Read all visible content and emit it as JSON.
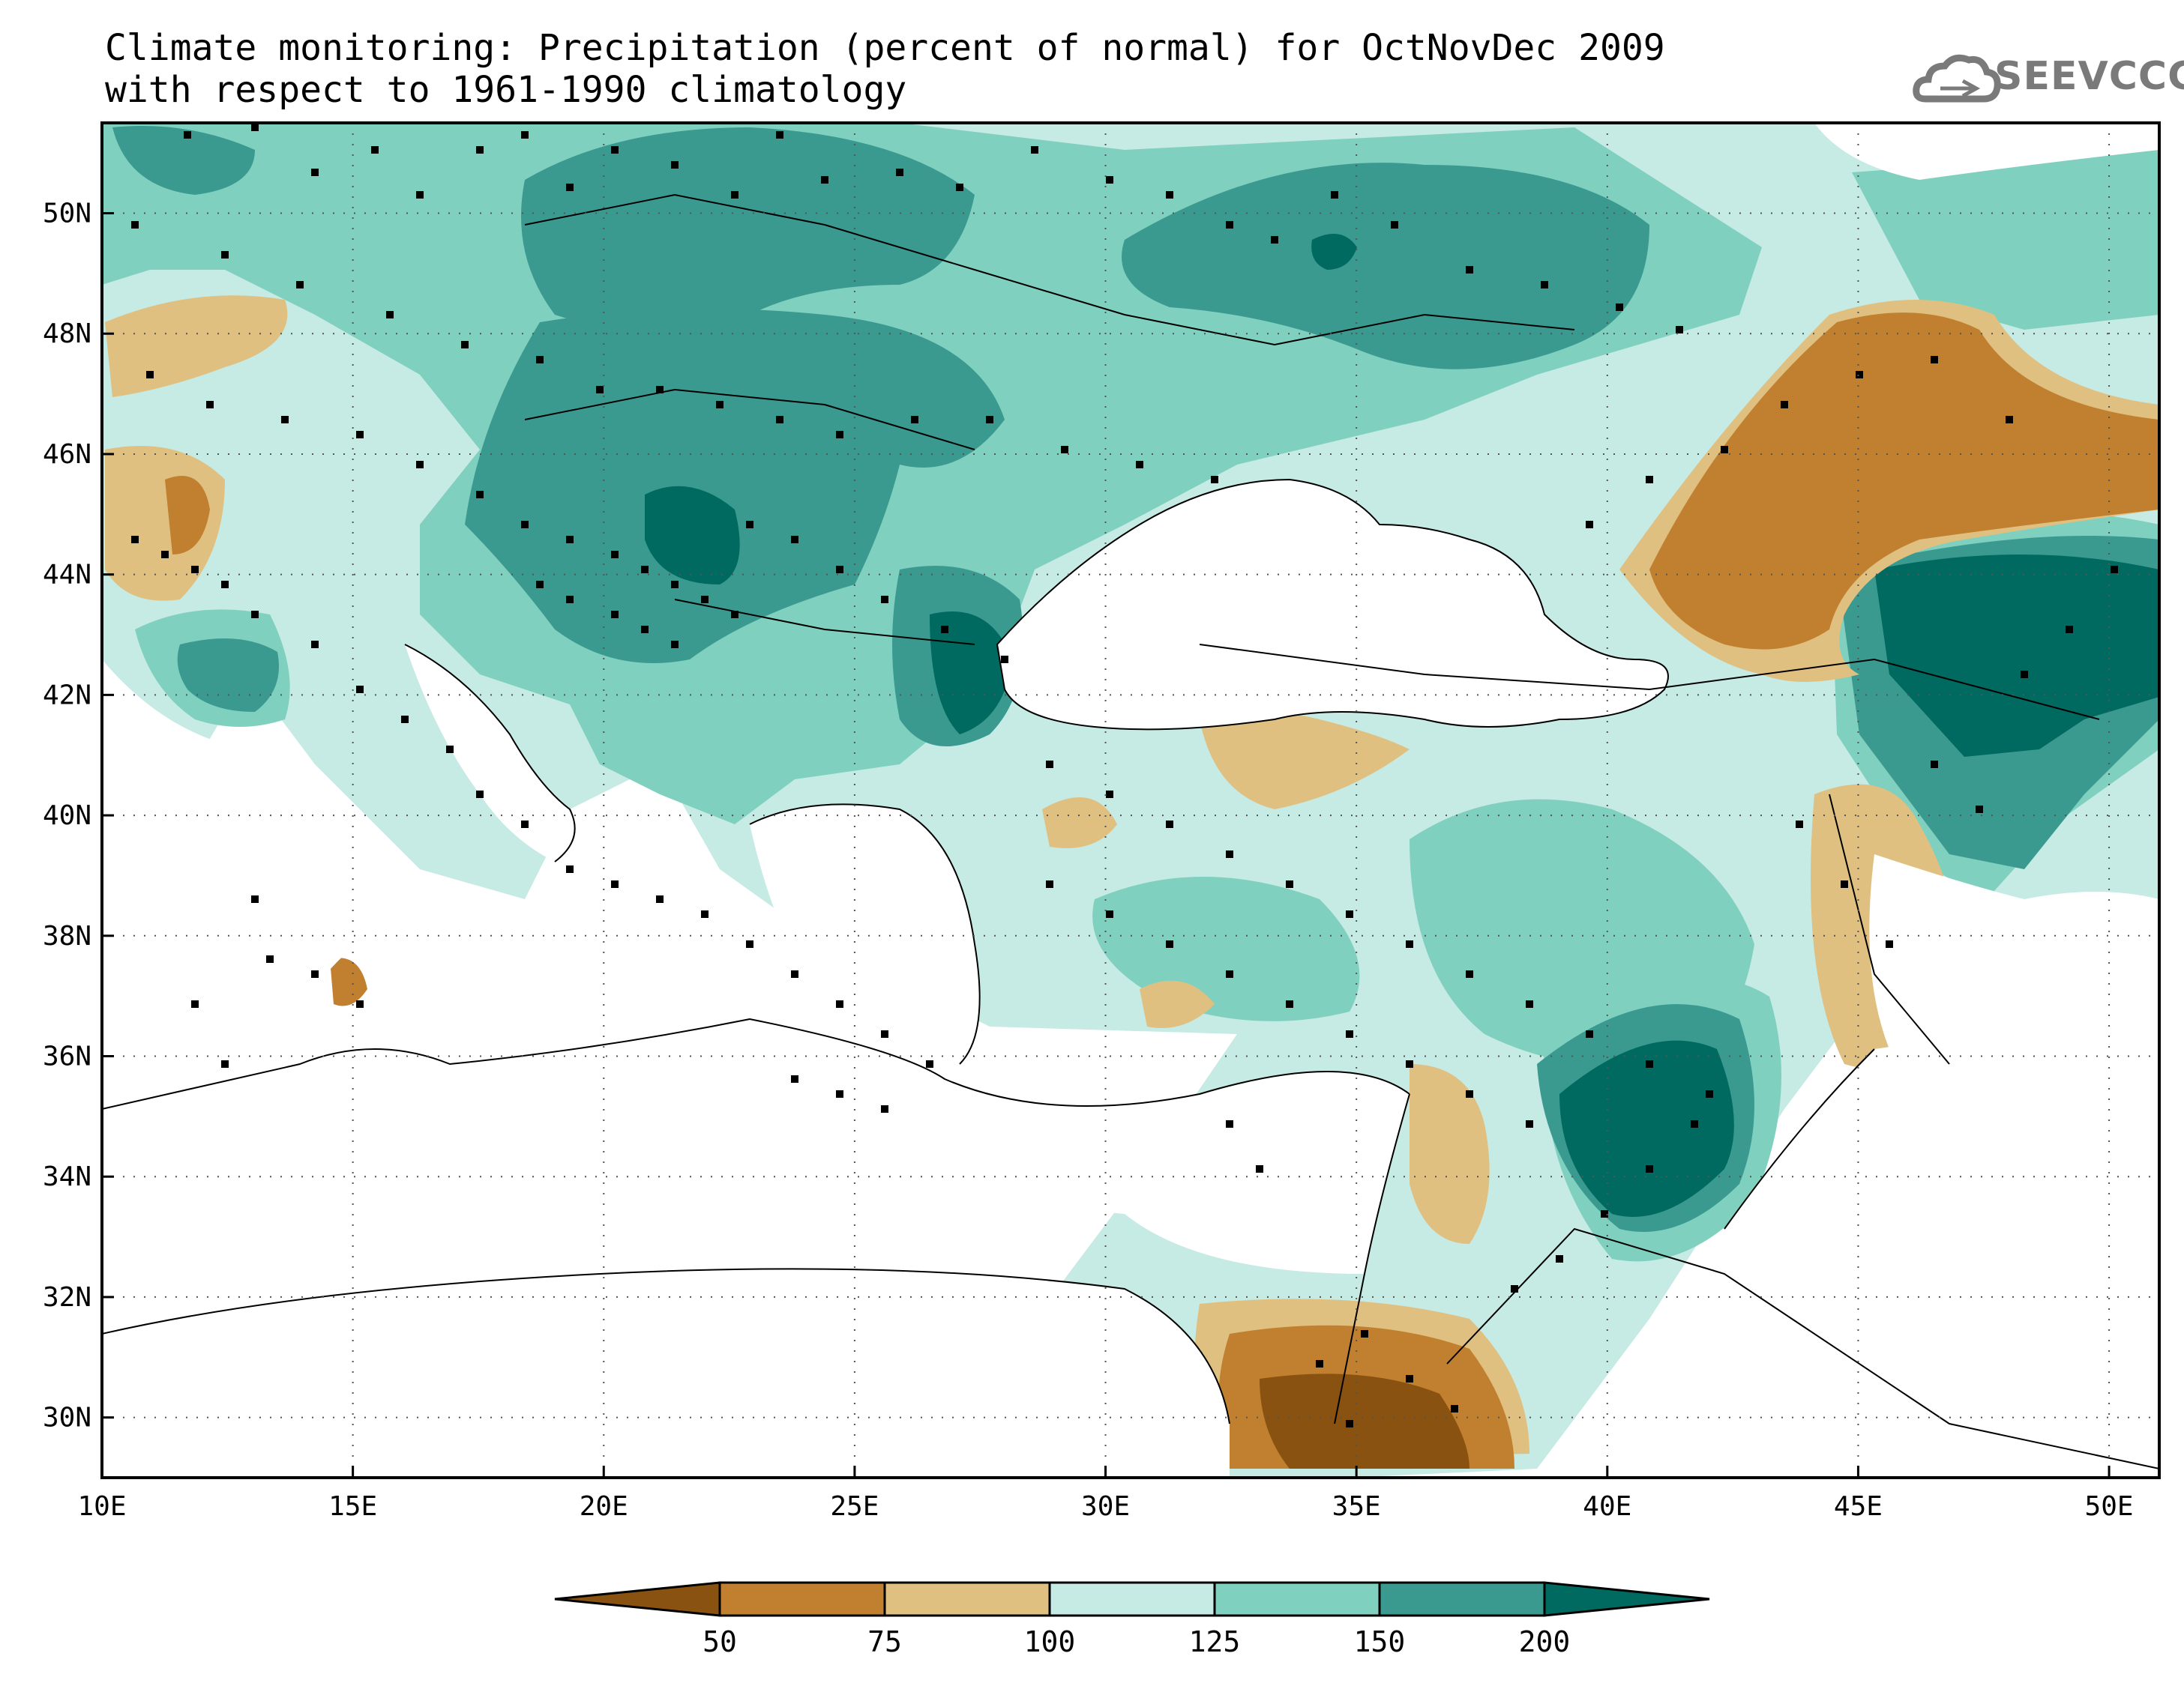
{
  "title": {
    "line1": "Climate monitoring: Precipitation (percent of normal) for OctNovDec 2009",
    "line2": "with respect to 1961-1990 climatology"
  },
  "logo": {
    "text": "SEEVCCC",
    "icon": "cloud-icon"
  },
  "map": {
    "lon_range": [
      10,
      51
    ],
    "lat_range": [
      29,
      51.5
    ],
    "lon_ticks": [
      "10E",
      "15E",
      "20E",
      "25E",
      "30E",
      "35E",
      "40E",
      "45E",
      "50E"
    ],
    "lat_ticks": [
      "50N",
      "48N",
      "46N",
      "44N",
      "42N",
      "40N",
      "38N",
      "36N",
      "34N",
      "32N",
      "30N"
    ],
    "grid": "dotted"
  },
  "legend": {
    "labels": [
      "50",
      "75",
      "100",
      "125",
      "150",
      "200"
    ],
    "colors": [
      "#8a5210",
      "#c08030",
      "#e0c080",
      "#c6eae4",
      "#80d0c0",
      "#3a9a90",
      "#006a60"
    ]
  }
}
